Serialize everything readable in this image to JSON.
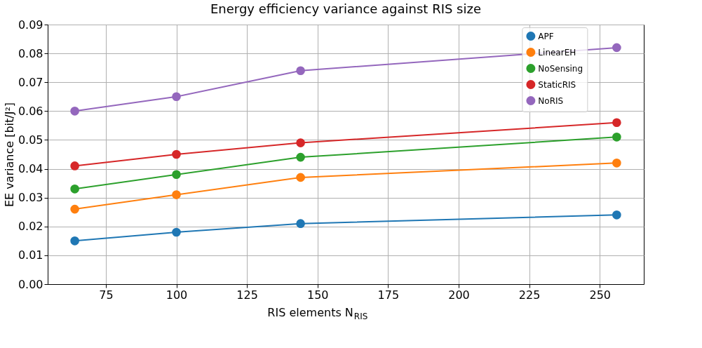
{
  "chart_data": {
    "type": "line",
    "title": "Energy efficiency variance against RIS size",
    "xlabel": "RIS elements N$_{RIS}$",
    "ylabel": "EE variance [bit/J²]",
    "x": [
      64,
      100,
      144,
      256
    ],
    "series": [
      {
        "name": "APF",
        "color": "#1f77b4",
        "values": [
          0.015,
          0.018,
          0.021,
          0.024
        ]
      },
      {
        "name": "LinearEH",
        "color": "#ff7f0e",
        "values": [
          0.026,
          0.031,
          0.037,
          0.042
        ]
      },
      {
        "name": "NoSensing",
        "color": "#2ca02c",
        "values": [
          0.033,
          0.038,
          0.044,
          0.051
        ]
      },
      {
        "name": "StaticRIS",
        "color": "#d62728",
        "values": [
          0.041,
          0.045,
          0.049,
          0.056
        ]
      },
      {
        "name": "NoRIS",
        "color": "#9467bd",
        "values": [
          0.06,
          0.065,
          0.074,
          0.082
        ]
      }
    ],
    "xlim": [
      54.4,
      265.6
    ],
    "xticks": [
      75,
      100,
      125,
      150,
      175,
      200,
      225,
      250
    ],
    "ylim": [
      0,
      0.09
    ],
    "yticks": [
      {
        "value": 0,
        "label": "0.00"
      },
      0.01,
      0.02,
      0.03,
      0.04,
      0.05,
      0.06,
      0.07,
      0.08,
      0.09
    ],
    "grid": true,
    "legend": "top right",
    "marker": "circle",
    "line_style": "solid"
  }
}
